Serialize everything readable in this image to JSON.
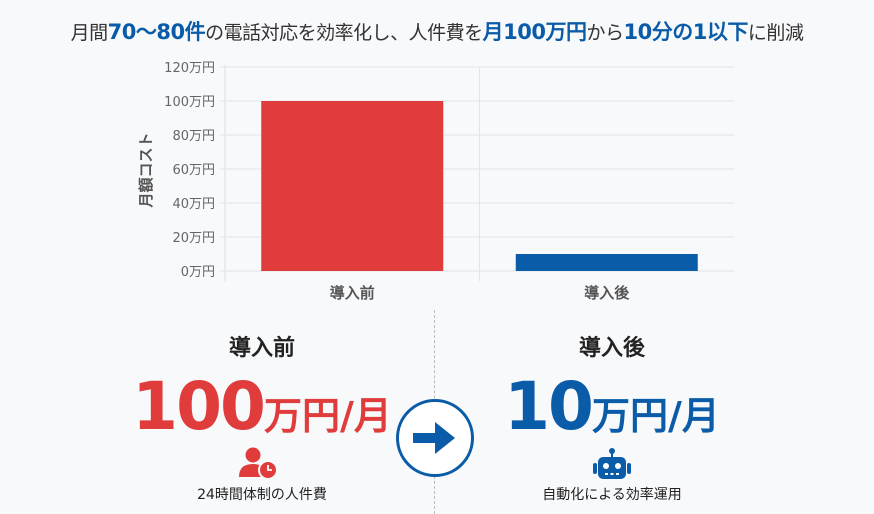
{
  "headline": {
    "parts": [
      {
        "text": "月間",
        "highlight": false
      },
      {
        "text": "70〜80件",
        "highlight": true
      },
      {
        "text": "の電話対応を効率化し、人件費を",
        "highlight": false
      },
      {
        "text": "月100万円",
        "highlight": true
      },
      {
        "text": "から",
        "highlight": false
      },
      {
        "text": "10分の1以下",
        "highlight": true
      },
      {
        "text": "に削減",
        "highlight": false
      }
    ]
  },
  "chart_data": {
    "type": "bar",
    "categories": [
      "導入前",
      "導入後"
    ],
    "values": [
      100,
      10
    ],
    "colors": [
      "#e03c3c",
      "#0a5ca8"
    ],
    "ylabel": "月額コスト",
    "ylim": [
      0,
      120
    ],
    "yticks": [
      0,
      20,
      40,
      60,
      80,
      100,
      120
    ],
    "ytick_labels": [
      "0万円",
      "20万円",
      "40万円",
      "60万円",
      "80万円",
      "100万円",
      "120万円"
    ],
    "grid": true
  },
  "comparison": {
    "before": {
      "label": "導入前",
      "number": "100",
      "unit": "万円/月",
      "icon": "person-clock-icon",
      "caption": "24時間体制の人件費",
      "color": "#e03c3c"
    },
    "after": {
      "label": "導入後",
      "number": "10",
      "unit": "万円/月",
      "icon": "robot-icon",
      "caption": "自動化による効率運用",
      "color": "#0a5ca8"
    },
    "arrow_icon": "arrow-right-icon"
  }
}
